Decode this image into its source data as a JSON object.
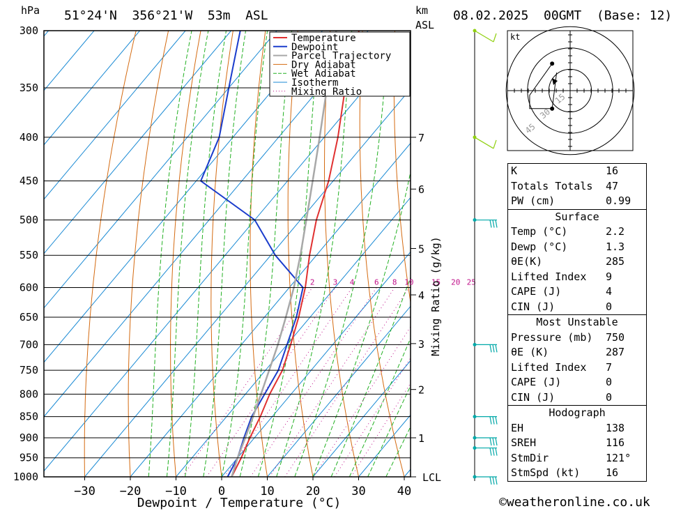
{
  "header": {
    "location": "51°24'N  356°21'W  53m  ASL",
    "datetime": "08.02.2025  00GMT  (Base: 12)",
    "pressure_unit": "hPa",
    "height_unit_top": "km",
    "height_unit_bottom": "ASL"
  },
  "footer": {
    "copyright": "©weatheronline.co.uk"
  },
  "chart_data": {
    "type": "line",
    "subtype": "skew-T log-P sounding",
    "xlabel": "Dewpoint / Temperature (°C)",
    "ylabel_right": "Mixing Ratio (g/kg)",
    "pressure_levels": [
      300,
      350,
      400,
      450,
      500,
      550,
      600,
      650,
      700,
      750,
      800,
      850,
      900,
      950,
      1000
    ],
    "temperature_ticks": [
      -30,
      -20,
      -10,
      0,
      10,
      20,
      30,
      40
    ],
    "height_ticks_km": [
      {
        "km": "7",
        "p": 400
      },
      {
        "km": "6",
        "p": 460
      },
      {
        "km": "5",
        "p": 540
      },
      {
        "km": "4",
        "p": 612
      },
      {
        "km": "3",
        "p": 698
      },
      {
        "km": "2",
        "p": 790
      },
      {
        "km": "1",
        "p": 900
      },
      {
        "km": "LCL",
        "p": 1000
      }
    ],
    "mixing_ratio_labels": [
      "2",
      "3",
      "4",
      "6",
      "8",
      "10",
      "15",
      "20",
      "25"
    ],
    "legend": [
      "Temperature",
      "Dewpoint",
      "Parcel Trajectory",
      "Dry Adiabat",
      "Wet Adiabat",
      "Isotherm",
      "Mixing Ratio"
    ],
    "colors": {
      "temperature": "#e03030",
      "dewpoint": "#1a3ccc",
      "parcel": "#a8a8a8",
      "dry_adiabat": "#d46a10",
      "wet_adiabat": "#22b022",
      "isotherm": "#1a8ad4",
      "mixing_ratio": "#c0108a",
      "wind_low": "#00a8a8",
      "wind_high": "#90d010"
    },
    "series": [
      {
        "name": "Temperature",
        "points": [
          {
            "p": 1000,
            "t": 2.2
          },
          {
            "p": 950,
            "t": 0.8
          },
          {
            "p": 900,
            "t": -1.0
          },
          {
            "p": 850,
            "t": -2.6
          },
          {
            "p": 800,
            "t": -4.7
          },
          {
            "p": 750,
            "t": -6.3
          },
          {
            "p": 700,
            "t": -9.2
          },
          {
            "p": 650,
            "t": -12.5
          },
          {
            "p": 600,
            "t": -16.5
          },
          {
            "p": 550,
            "t": -21.5
          },
          {
            "p": 500,
            "t": -26.5
          },
          {
            "p": 450,
            "t": -31.0
          },
          {
            "p": 400,
            "t": -37.0
          },
          {
            "p": 350,
            "t": -44.5
          },
          {
            "p": 300,
            "t": -52.0
          }
        ]
      },
      {
        "name": "Dewpoint",
        "points": [
          {
            "p": 1000,
            "t": 1.3
          },
          {
            "p": 950,
            "t": 0.0
          },
          {
            "p": 900,
            "t": -2.3
          },
          {
            "p": 850,
            "t": -4.5
          },
          {
            "p": 800,
            "t": -5.8
          },
          {
            "p": 750,
            "t": -7.2
          },
          {
            "p": 700,
            "t": -10.0
          },
          {
            "p": 650,
            "t": -13.0
          },
          {
            "p": 600,
            "t": -17.0
          },
          {
            "p": 550,
            "t": -29.0
          },
          {
            "p": 500,
            "t": -40.0
          },
          {
            "p": 450,
            "t": -59.0
          },
          {
            "p": 400,
            "t": -63.0
          },
          {
            "p": 350,
            "t": -70.0
          },
          {
            "p": 300,
            "t": -78.0
          }
        ]
      },
      {
        "name": "Parcel Trajectory",
        "points": [
          {
            "p": 1000,
            "t": 2.2
          },
          {
            "p": 950,
            "t": 0.0
          },
          {
            "p": 900,
            "t": -2.0
          },
          {
            "p": 850,
            "t": -4.2
          },
          {
            "p": 800,
            "t": -6.6
          },
          {
            "p": 750,
            "t": -9.2
          },
          {
            "p": 700,
            "t": -12.0
          },
          {
            "p": 650,
            "t": -15.3
          },
          {
            "p": 600,
            "t": -19.0
          },
          {
            "p": 550,
            "t": -23.5
          },
          {
            "p": 500,
            "t": -28.7
          },
          {
            "p": 450,
            "t": -34.5
          },
          {
            "p": 400,
            "t": -41.0
          },
          {
            "p": 350,
            "t": -48.5
          },
          {
            "p": 300,
            "t": -57.0
          }
        ]
      }
    ],
    "hodograph": {
      "unit": "kt",
      "ring_labels": [
        "15",
        "30",
        "45"
      ],
      "points": [
        {
          "u": -4,
          "v": 6
        },
        {
          "u": -9,
          "v": -1
        },
        {
          "u": -9,
          "v": -4
        },
        {
          "u": -4,
          "v": -4
        },
        {
          "u": -3,
          "v": 4
        }
      ]
    },
    "wind_barbs": [
      {
        "p": 300,
        "kind": "high"
      },
      {
        "p": 400,
        "kind": "high"
      },
      {
        "p": 500,
        "kind": "low"
      },
      {
        "p": 700,
        "kind": "low"
      },
      {
        "p": 850,
        "kind": "low"
      },
      {
        "p": 900,
        "kind": "low"
      },
      {
        "p": 925,
        "kind": "low"
      },
      {
        "p": 1000,
        "kind": "low"
      }
    ]
  },
  "indices": {
    "top": [
      {
        "label": "K",
        "value": "16"
      },
      {
        "label": "Totals Totals",
        "value": "47"
      },
      {
        "label": "PW (cm)",
        "value": "0.99"
      }
    ],
    "surface_title": "Surface",
    "surface": [
      {
        "label": "Temp (°C)",
        "value": "2.2"
      },
      {
        "label": "Dewp (°C)",
        "value": "1.3"
      },
      {
        "label": "θE(K)",
        "value": "285"
      },
      {
        "label": "Lifted Index",
        "value": "9"
      },
      {
        "label": "CAPE (J)",
        "value": "4"
      },
      {
        "label": "CIN (J)",
        "value": "0"
      }
    ],
    "unstable_title": "Most Unstable",
    "unstable": [
      {
        "label": "Pressure (mb)",
        "value": "750"
      },
      {
        "label": "θE (K)",
        "value": "287"
      },
      {
        "label": "Lifted Index",
        "value": "7"
      },
      {
        "label": "CAPE (J)",
        "value": "0"
      },
      {
        "label": "CIN (J)",
        "value": "0"
      }
    ],
    "hodograph_title": "Hodograph",
    "hodograph": [
      {
        "label": "EH",
        "value": "138"
      },
      {
        "label": "SREH",
        "value": "116"
      },
      {
        "label": "StmDir",
        "value": "121°"
      },
      {
        "label": "StmSpd (kt)",
        "value": "16"
      }
    ]
  }
}
